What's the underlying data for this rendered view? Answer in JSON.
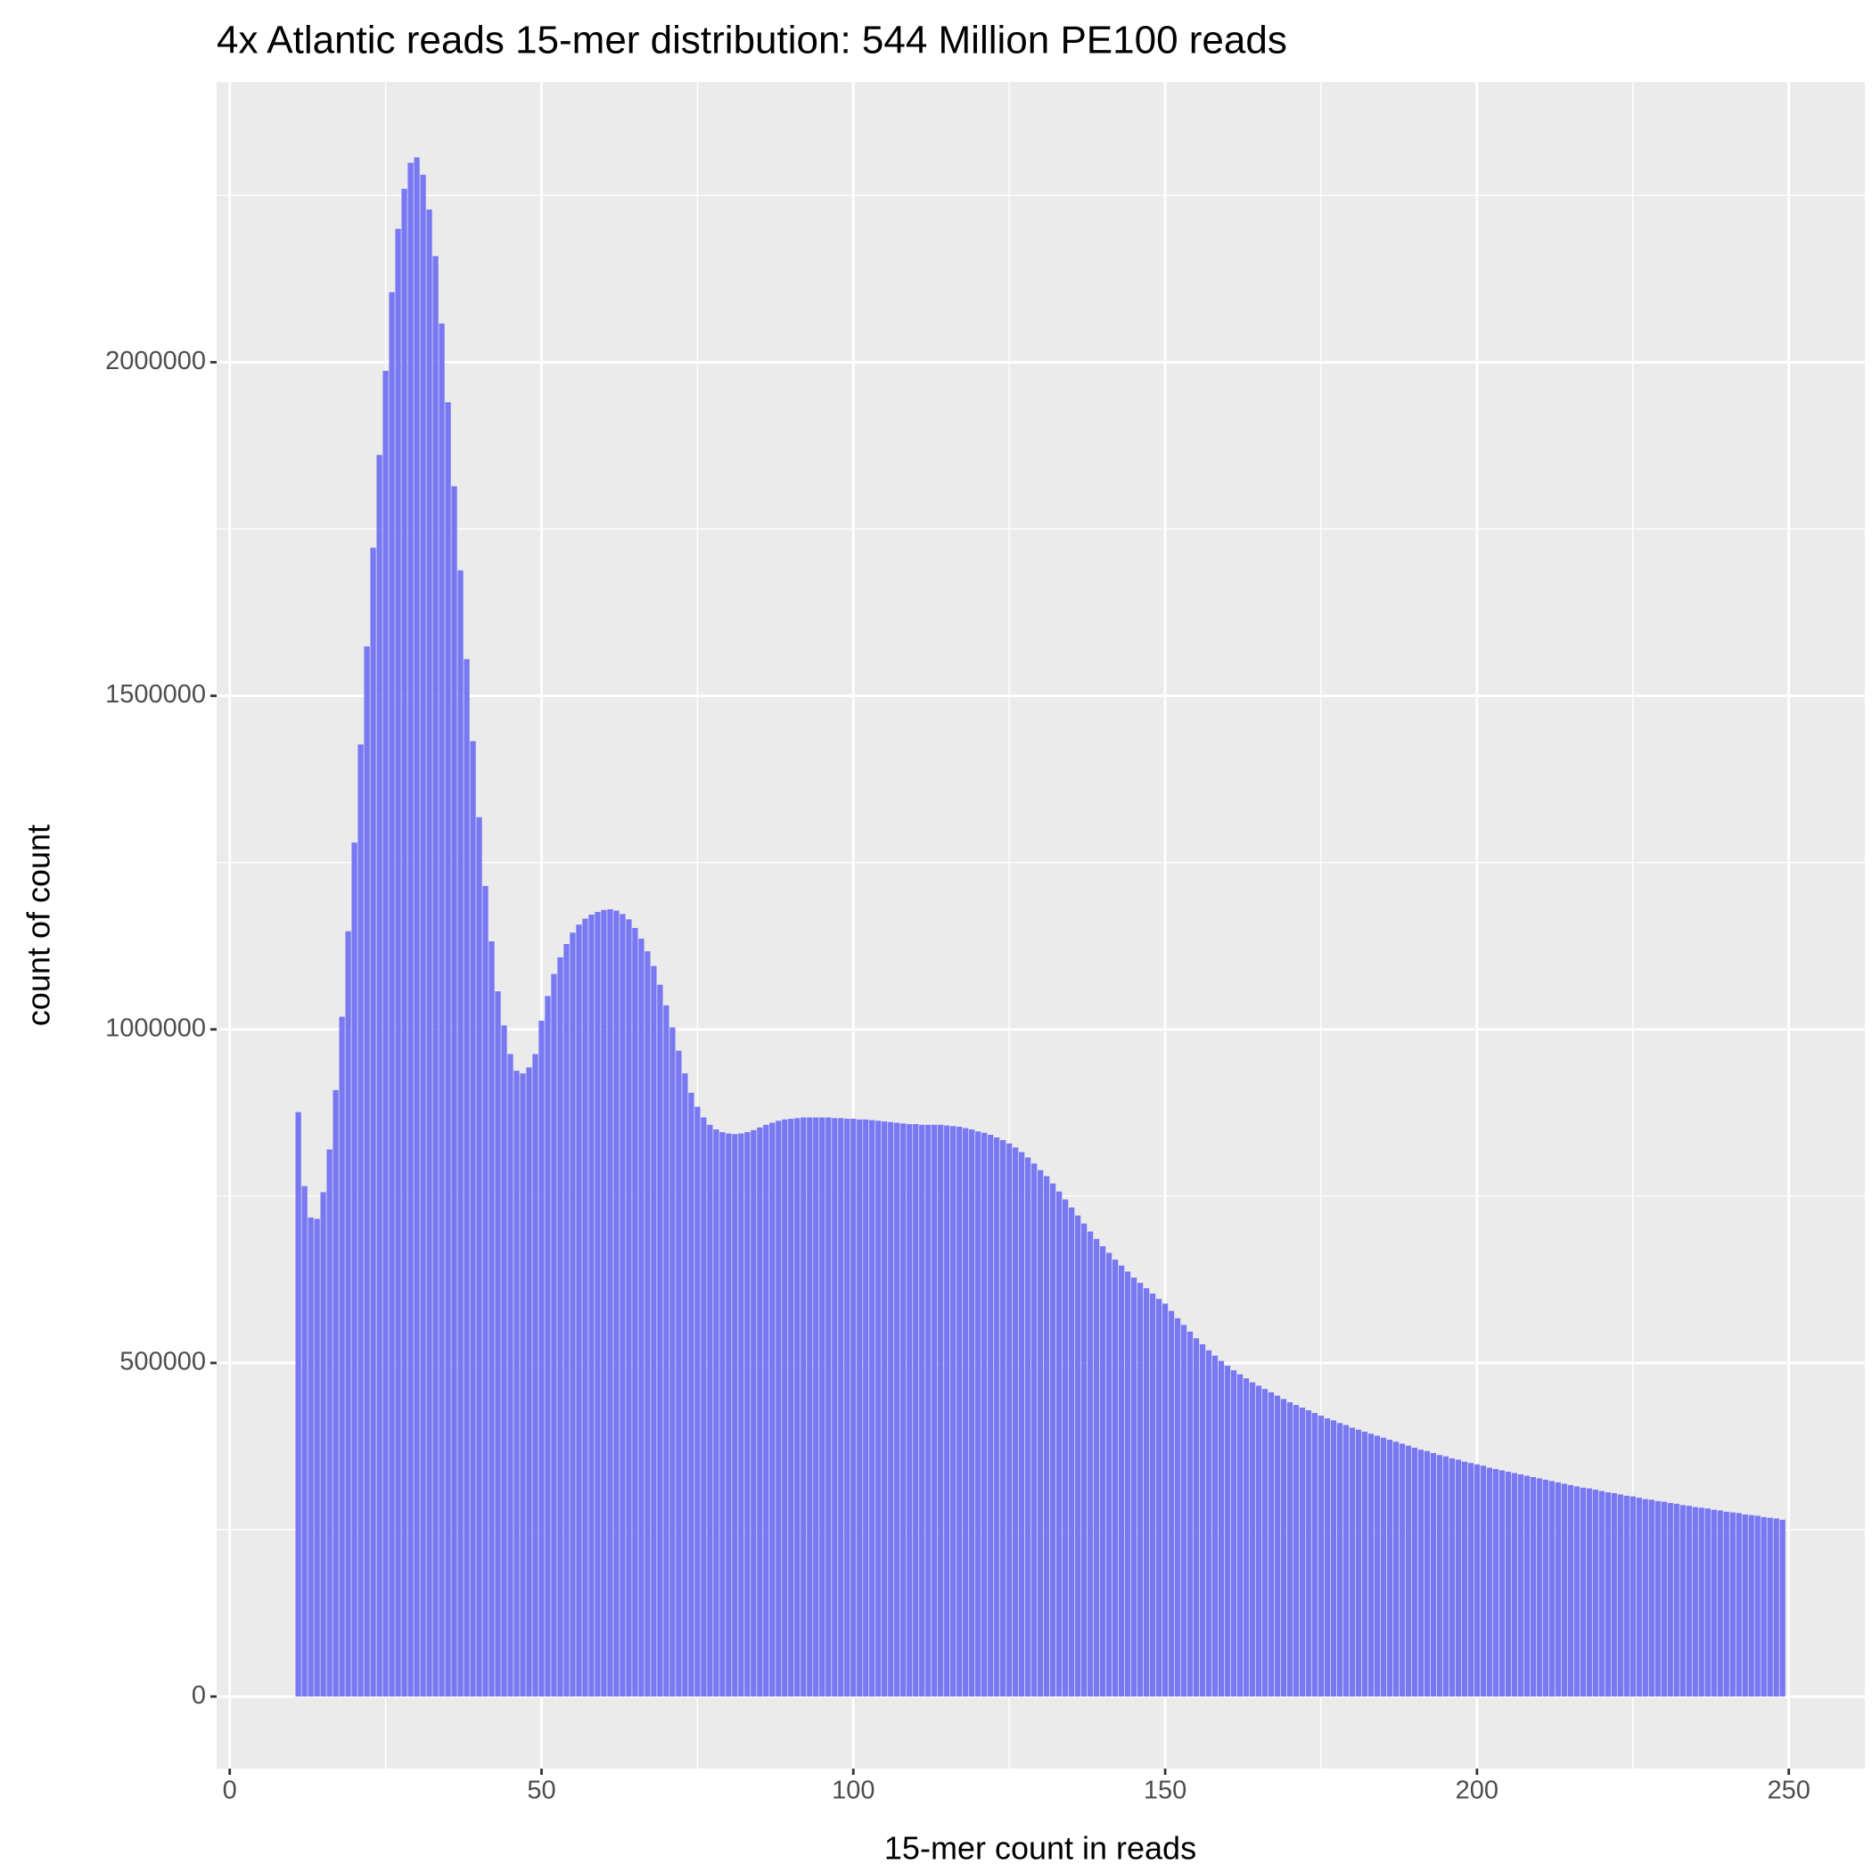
{
  "chart_data": {
    "type": "bar",
    "title": "4x Atlantic reads 15-mer distribution: 544 Million PE100 reads",
    "xlabel": "15-mer count in reads",
    "ylabel": "count of count",
    "color": "#7878f2",
    "xlim": [
      -2.1,
      262.2
    ],
    "ylim": [
      -108000,
      2420000
    ],
    "xticks": [
      0,
      50,
      100,
      150,
      200,
      250
    ],
    "yticks": [
      0,
      500000,
      1000000,
      1500000,
      2000000
    ],
    "xminor": [
      25,
      75,
      125,
      175,
      225
    ],
    "yminor": [
      250000,
      750000,
      1250000,
      1750000,
      2250000
    ],
    "grid": true,
    "x": [
      11,
      12,
      13,
      14,
      15,
      16,
      17,
      18,
      19,
      20,
      21,
      22,
      23,
      24,
      25,
      26,
      27,
      28,
      29,
      30,
      31,
      32,
      33,
      34,
      35,
      36,
      37,
      38,
      39,
      40,
      41,
      42,
      43,
      44,
      45,
      46,
      47,
      48,
      49,
      50,
      51,
      52,
      53,
      54,
      55,
      56,
      57,
      58,
      59,
      60,
      61,
      62,
      63,
      64,
      65,
      66,
      67,
      68,
      69,
      70,
      71,
      72,
      73,
      74,
      75,
      76,
      77,
      78,
      79,
      80,
      81,
      82,
      83,
      84,
      85,
      86,
      87,
      88,
      89,
      90,
      91,
      92,
      93,
      94,
      95,
      96,
      97,
      98,
      99,
      100,
      101,
      102,
      103,
      104,
      105,
      106,
      107,
      108,
      109,
      110,
      111,
      112,
      113,
      114,
      115,
      116,
      117,
      118,
      119,
      120,
      121,
      122,
      123,
      124,
      125,
      126,
      127,
      128,
      129,
      130,
      131,
      132,
      133,
      134,
      135,
      136,
      137,
      138,
      139,
      140,
      141,
      142,
      143,
      144,
      145,
      146,
      147,
      148,
      149,
      150,
      151,
      152,
      153,
      154,
      155,
      156,
      157,
      158,
      159,
      160,
      161,
      162,
      163,
      164,
      165,
      166,
      167,
      168,
      169,
      170,
      171,
      172,
      173,
      174,
      175,
      176,
      177,
      178,
      179,
      180,
      181,
      182,
      183,
      184,
      185,
      186,
      187,
      188,
      189,
      190,
      191,
      192,
      193,
      194,
      195,
      196,
      197,
      198,
      199,
      200,
      201,
      202,
      203,
      204,
      205,
      206,
      207,
      208,
      209,
      210,
      211,
      212,
      213,
      214,
      215,
      216,
      217,
      218,
      219,
      220,
      221,
      222,
      223,
      224,
      225,
      226,
      227,
      228,
      229,
      230,
      231,
      232,
      233,
      234,
      235,
      236,
      237,
      238,
      239,
      240,
      241,
      242,
      243,
      244,
      245,
      246,
      247,
      248,
      249
    ],
    "values": [
      876000,
      765000,
      718000,
      716000,
      756000,
      820000,
      909000,
      1019000,
      1147000,
      1280000,
      1427000,
      1574000,
      1722000,
      1861000,
      1987000,
      2105000,
      2200000,
      2260000,
      2299000,
      2307000,
      2281000,
      2229000,
      2159000,
      2058000,
      1940000,
      1814000,
      1688000,
      1555000,
      1432000,
      1318000,
      1215000,
      1132000,
      1057000,
      1006000,
      963000,
      938000,
      934000,
      943000,
      963000,
      1013000,
      1050000,
      1083000,
      1108000,
      1128000,
      1145000,
      1157000,
      1166000,
      1172000,
      1176000,
      1179000,
      1180000,
      1178000,
      1173000,
      1165000,
      1152000,
      1136000,
      1117000,
      1095000,
      1067000,
      1036000,
      1003000,
      968000,
      934000,
      905000,
      884000,
      868000,
      857000,
      850000,
      846000,
      844000,
      843000,
      844000,
      846000,
      849000,
      853000,
      857000,
      860000,
      863000,
      865000,
      866000,
      867000,
      868000,
      868000,
      868000,
      868000,
      868000,
      867000,
      867000,
      866000,
      866000,
      865000,
      865000,
      864000,
      863000,
      862000,
      861000,
      860000,
      859000,
      858000,
      858000,
      857000,
      857000,
      857000,
      857000,
      856000,
      855000,
      854000,
      852000,
      850000,
      847000,
      845000,
      842000,
      838000,
      834000,
      829000,
      823000,
      816000,
      808000,
      799000,
      789000,
      780000,
      769000,
      757000,
      745000,
      733000,
      721000,
      709000,
      697000,
      686000,
      675000,
      665000,
      655000,
      646000,
      637000,
      628000,
      620000,
      612000,
      604000,
      596000,
      589000,
      578000,
      567000,
      557000,
      547000,
      537000,
      528000,
      519000,
      511000,
      503000,
      496000,
      489000,
      483000,
      477000,
      471000,
      466000,
      461000,
      456000,
      451000,
      446000,
      441000,
      437000,
      433000,
      429000,
      425000,
      421000,
      417000,
      414000,
      410000,
      407000,
      403000,
      400000,
      397000,
      394000,
      391000,
      388000,
      385000,
      382000,
      379000,
      376000,
      373000,
      370000,
      368000,
      365000,
      362000,
      360000,
      357000,
      355000,
      352000,
      350000,
      348000,
      346000,
      343000,
      341000,
      339000,
      337000,
      335000,
      333000,
      331000,
      329000,
      327000,
      325000,
      323000,
      321000,
      319000,
      317000,
      315000,
      313000,
      312000,
      310000,
      308000,
      306000,
      305000,
      303000,
      301000,
      300000,
      298000,
      296000,
      295000,
      293000,
      292000,
      290000,
      289000,
      287000,
      286000,
      284000,
      283000,
      282000,
      280000,
      279000,
      277000,
      276000,
      275000,
      273000,
      272000,
      271000,
      269000,
      268000,
      267000,
      265000
    ]
  }
}
